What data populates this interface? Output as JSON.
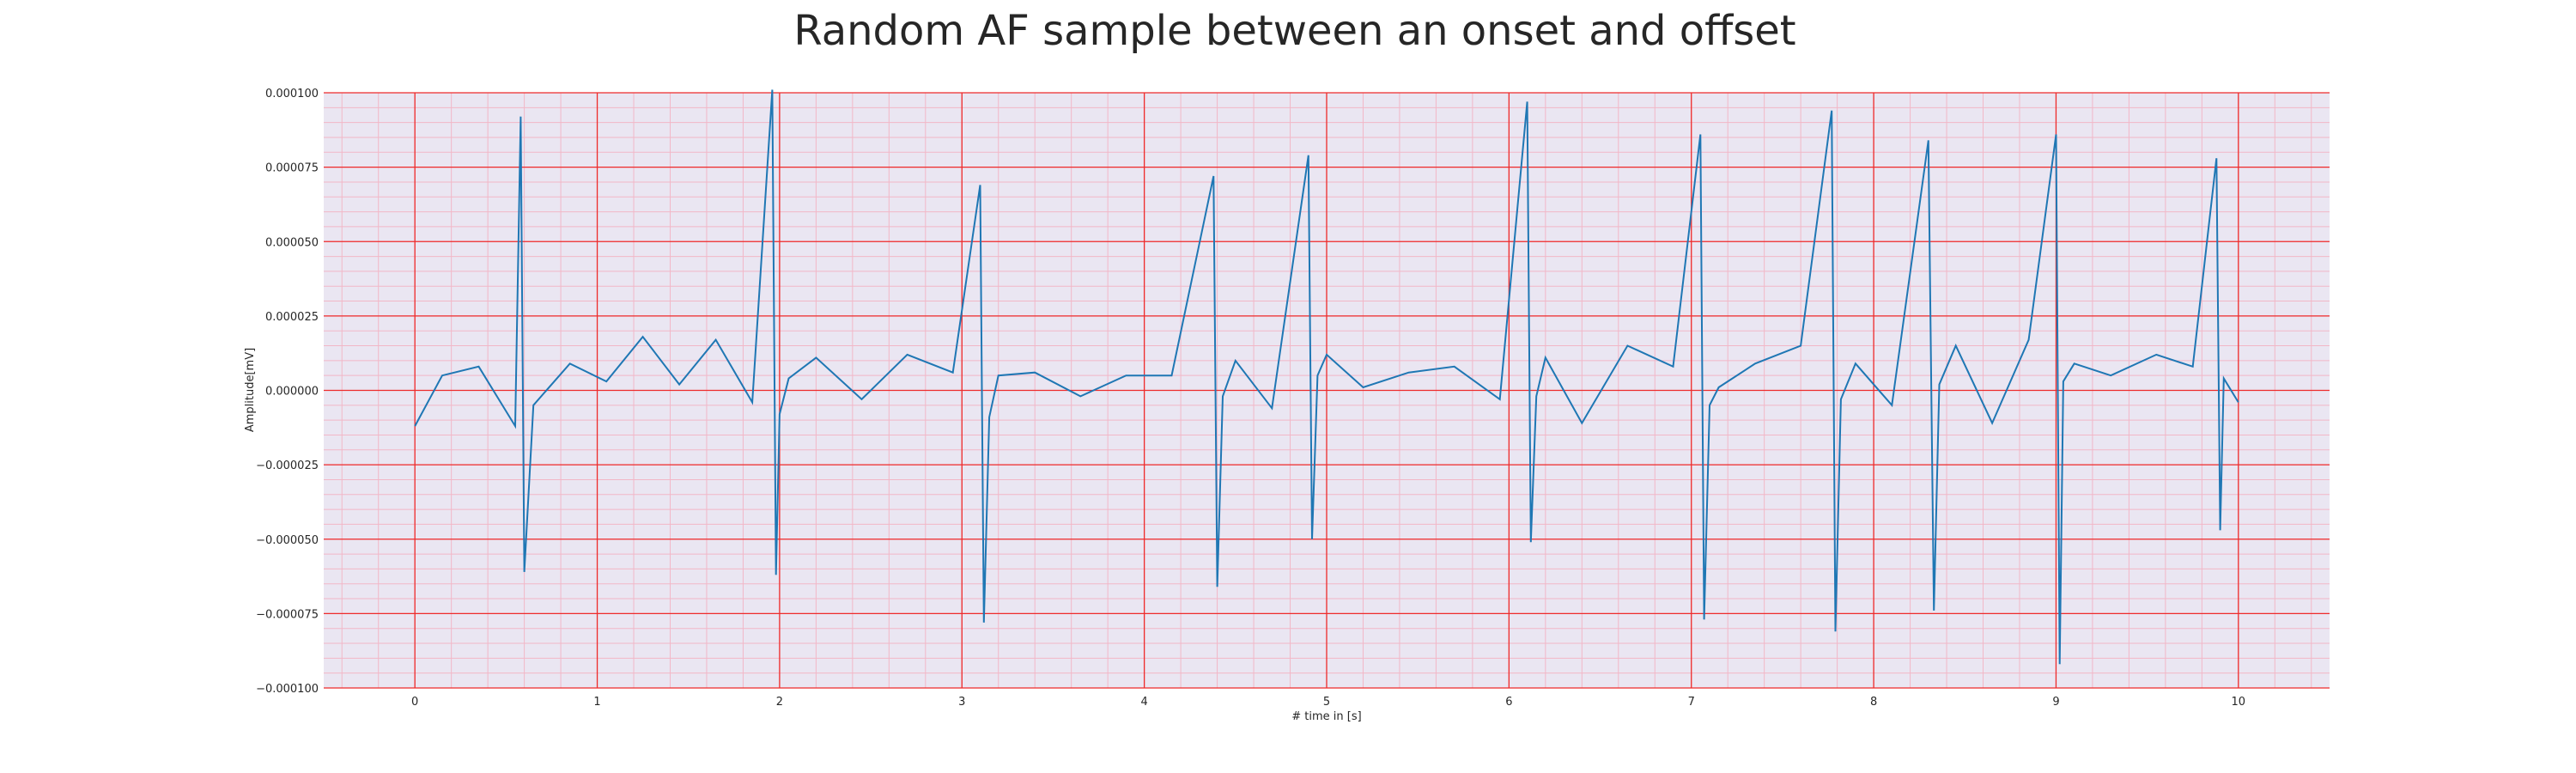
{
  "chart_data": {
    "type": "line",
    "title": "Random AF sample between an onset and offset",
    "xlabel": "# time in [s]",
    "ylabel": "Amplitude[mV]",
    "xlim": [
      -0.5,
      10.5
    ],
    "ylim": [
      -0.0001,
      0.0001
    ],
    "xticks": [
      0,
      1,
      2,
      3,
      4,
      5,
      6,
      7,
      8,
      9,
      10
    ],
    "yticks": [
      -0.0001,
      -7.5e-05,
      -5e-05,
      -2.5e-05,
      0,
      2.5e-05,
      5e-05,
      7.5e-05,
      0.0001
    ],
    "ytick_labels": [
      "−0.000100",
      "−0.000075",
      "−0.000050",
      "−0.000025",
      "0.000000",
      "0.000025",
      "0.000050",
      "0.000075",
      "0.000100"
    ],
    "grid": true,
    "minor_grid": true,
    "colors": {
      "plot_background": "#eae6f2",
      "major_grid": "#ee2b2b",
      "minor_grid": "#f2b7c7",
      "line": "#1f77b4"
    },
    "series": [
      {
        "x": [
          0.0,
          0.15,
          0.35,
          0.55,
          0.58,
          0.6,
          0.65,
          0.85,
          1.05,
          1.25,
          1.45,
          1.65,
          1.85,
          1.96,
          1.98,
          2.0,
          2.05,
          2.2,
          2.45,
          2.7,
          2.95,
          3.1,
          3.12,
          3.15,
          3.2,
          3.4,
          3.65,
          3.9,
          4.15,
          4.38,
          4.4,
          4.43,
          4.5,
          4.7,
          4.9,
          4.92,
          4.95,
          5.0,
          5.2,
          5.45,
          5.7,
          5.95,
          6.1,
          6.12,
          6.15,
          6.2,
          6.4,
          6.65,
          6.9,
          7.05,
          7.07,
          7.1,
          7.15,
          7.35,
          7.6,
          7.77,
          7.79,
          7.82,
          7.9,
          8.1,
          8.3,
          8.33,
          8.36,
          8.45,
          8.65,
          8.85,
          9.0,
          9.02,
          9.04,
          9.1,
          9.3,
          9.55,
          9.75,
          9.88,
          9.9,
          9.92,
          10.0
        ],
        "y": [
          -1.2e-05,
          5e-06,
          8e-06,
          -1.2e-05,
          9.2e-05,
          -6.1e-05,
          -5e-06,
          9e-06,
          3e-06,
          1.8e-05,
          2e-06,
          1.7e-05,
          -4e-06,
          0.000101,
          -6.2e-05,
          -8e-06,
          4e-06,
          1.1e-05,
          -3e-06,
          1.2e-05,
          6e-06,
          6.9e-05,
          -7.8e-05,
          -9e-06,
          5e-06,
          6e-06,
          -2e-06,
          5e-06,
          5e-06,
          7.2e-05,
          -6.6e-05,
          -2e-06,
          1e-05,
          -6e-06,
          7.9e-05,
          -5e-05,
          5e-06,
          1.2e-05,
          1e-06,
          6e-06,
          8e-06,
          -3e-06,
          9.7e-05,
          -5.1e-05,
          -2e-06,
          1.1e-05,
          -1.1e-05,
          1.5e-05,
          8e-06,
          8.6e-05,
          -7.7e-05,
          -5e-06,
          1e-06,
          9e-06,
          1.5e-05,
          9.4e-05,
          -8.1e-05,
          -3e-06,
          9e-06,
          -5e-06,
          8.4e-05,
          -7.4e-05,
          2e-06,
          1.5e-05,
          -1.1e-05,
          1.7e-05,
          8.6e-05,
          -9.2e-05,
          3e-06,
          9e-06,
          5e-06,
          1.2e-05,
          8e-06,
          7.8e-05,
          -4.7e-05,
          4e-06,
          -4e-06
        ]
      }
    ]
  }
}
